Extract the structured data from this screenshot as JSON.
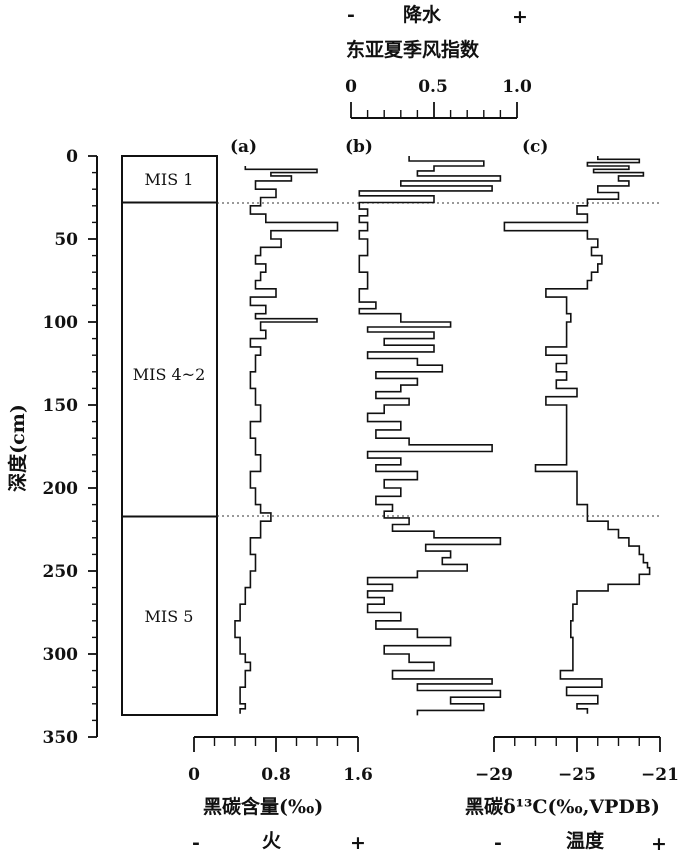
{
  "top_axis": {
    "sign_minus": "-",
    "sign_plus": "+",
    "title_precip": "降水",
    "title_index": "东亚夏季风指数",
    "ticks": [
      "0",
      "0.5",
      "1.0"
    ],
    "range": [
      0,
      1
    ]
  },
  "depth_axis": {
    "label": "深度(cm)",
    "ticks": [
      "0",
      "50",
      "100",
      "150",
      "200",
      "250",
      "300",
      "350"
    ],
    "range": [
      0,
      350
    ]
  },
  "panels": {
    "a": "(a)",
    "b": "(b)",
    "c": "(c)"
  },
  "mis": [
    {
      "label": "MIS 1",
      "top": 0,
      "bottom": 28
    },
    {
      "label": "MIS 4~2",
      "top": 28,
      "bottom": 216
    },
    {
      "label": "MIS 5",
      "top": 216,
      "bottom": 337
    }
  ],
  "bottom_axis_a": {
    "ticks": [
      "0",
      "0.8",
      "1.6"
    ],
    "range": [
      0,
      1.6
    ],
    "label": "黑碳含量(‰)",
    "sign_minus": "-",
    "sign_plus": "+",
    "fire_label": "火"
  },
  "bottom_axis_c": {
    "ticks": [
      "−29",
      "−25",
      "−21"
    ],
    "range": [
      -29,
      -21
    ],
    "label": "黑碳δ¹³C(‰,VPDB)",
    "sign_minus": "-",
    "sign_plus": "+",
    "temp_label": "温度"
  },
  "chart_data": [
    {
      "type": "line",
      "panel": "a",
      "xlabel": "黑碳含量(‰)",
      "ylabel": "深度(cm)",
      "xlim": [
        0,
        1.6
      ],
      "ylim": [
        350,
        0
      ],
      "series": [
        {
          "depth": [
            6,
            8,
            10,
            12,
            15,
            20,
            25,
            30,
            35,
            40,
            45,
            50,
            55,
            60,
            65,
            70,
            75,
            80,
            85,
            90,
            95,
            98,
            100,
            105,
            110,
            115,
            120,
            130,
            140,
            150,
            160,
            170,
            180,
            190,
            200,
            210,
            215,
            220,
            230,
            240,
            250,
            260,
            270,
            280,
            290,
            300,
            305,
            310,
            320,
            330,
            333
          ],
          "value": [
            0.5,
            1.2,
            0.75,
            0.95,
            0.6,
            0.8,
            0.65,
            0.55,
            0.7,
            1.4,
            0.75,
            0.85,
            0.65,
            0.6,
            0.7,
            0.65,
            0.6,
            0.8,
            0.55,
            0.7,
            0.6,
            1.2,
            0.65,
            0.7,
            0.55,
            0.65,
            0.6,
            0.55,
            0.6,
            0.65,
            0.55,
            0.6,
            0.65,
            0.55,
            0.6,
            0.65,
            0.75,
            0.65,
            0.55,
            0.6,
            0.55,
            0.5,
            0.45,
            0.4,
            0.45,
            0.5,
            0.55,
            0.5,
            0.45,
            0.5,
            0.45
          ]
        }
      ]
    },
    {
      "type": "line",
      "panel": "b",
      "xlabel": "东亚夏季风指数",
      "ylabel": "深度(cm)",
      "xlim": [
        0,
        1
      ],
      "ylim": [
        350,
        0
      ],
      "series": [
        {
          "depth": [
            0,
            3,
            6,
            9,
            12,
            15,
            18,
            21,
            24,
            28,
            32,
            36,
            40,
            45,
            50,
            60,
            70,
            80,
            88,
            92,
            95,
            100,
            103,
            106,
            110,
            114,
            118,
            122,
            126,
            130,
            134,
            138,
            142,
            146,
            150,
            155,
            160,
            165,
            170,
            174,
            178,
            182,
            186,
            190,
            195,
            200,
            205,
            210,
            214,
            218,
            222,
            226,
            230,
            234,
            238,
            242,
            246,
            250,
            254,
            258,
            262,
            266,
            270,
            275,
            280,
            285,
            290,
            295,
            300,
            305,
            310,
            315,
            318,
            322,
            326,
            330,
            334
          ],
          "value": [
            0.35,
            0.8,
            0.5,
            0.4,
            0.9,
            0.3,
            0.85,
            0.05,
            0.5,
            0.05,
            0.1,
            0.05,
            0.1,
            0.05,
            0.1,
            0.05,
            0.1,
            0.05,
            0.15,
            0.05,
            0.3,
            0.6,
            0.1,
            0.5,
            0.2,
            0.5,
            0.1,
            0.4,
            0.55,
            0.15,
            0.4,
            0.3,
            0.15,
            0.35,
            0.2,
            0.1,
            0.3,
            0.15,
            0.35,
            0.85,
            0.1,
            0.3,
            0.15,
            0.4,
            0.2,
            0.3,
            0.15,
            0.25,
            0.2,
            0.35,
            0.25,
            0.5,
            0.9,
            0.45,
            0.6,
            0.55,
            0.7,
            0.4,
            0.1,
            0.25,
            0.1,
            0.2,
            0.1,
            0.3,
            0.15,
            0.4,
            0.6,
            0.2,
            0.35,
            0.5,
            0.25,
            0.85,
            0.4,
            0.9,
            0.6,
            0.8,
            0.4
          ]
        }
      ]
    },
    {
      "type": "line",
      "panel": "c",
      "xlabel": "黑碳δ¹³C(‰,VPDB)",
      "ylabel": "深度(cm)",
      "xlim": [
        -29,
        -21
      ],
      "ylim": [
        350,
        0
      ],
      "series": [
        {
          "depth": [
            0,
            2,
            4,
            6,
            8,
            10,
            12,
            15,
            18,
            22,
            26,
            30,
            35,
            40,
            45,
            50,
            55,
            60,
            65,
            70,
            75,
            80,
            85,
            90,
            95,
            100,
            110,
            115,
            120,
            125,
            130,
            135,
            140,
            145,
            150,
            160,
            170,
            180,
            186,
            190,
            200,
            210,
            216,
            220,
            225,
            230,
            235,
            240,
            245,
            248,
            252,
            258,
            262,
            270,
            280,
            290,
            300,
            310,
            315,
            320,
            325,
            330,
            333
          ],
          "value": [
            -24,
            -22,
            -24.5,
            -22.5,
            -24.2,
            -21.8,
            -23,
            -22.5,
            -24,
            -23,
            -24.5,
            -25,
            -24.5,
            -28.5,
            -24.5,
            -24,
            -24.3,
            -23.8,
            -24,
            -24.3,
            -24.5,
            -26.5,
            -25.5,
            -25.5,
            -25.3,
            -25.5,
            -25.5,
            -26.5,
            -25.5,
            -26,
            -25.5,
            -26,
            -25,
            -26.5,
            -25.5,
            -25.5,
            -25.5,
            -25.5,
            -27,
            -25,
            -25,
            -24.5,
            -24.5,
            -23.5,
            -23,
            -22.5,
            -22,
            -21.8,
            -21.6,
            -21.5,
            -22,
            -23.5,
            -25,
            -25.2,
            -25.3,
            -25.2,
            -25.2,
            -25.8,
            -23.8,
            -25.5,
            -24,
            -25,
            -24.5
          ]
        }
      ]
    }
  ]
}
